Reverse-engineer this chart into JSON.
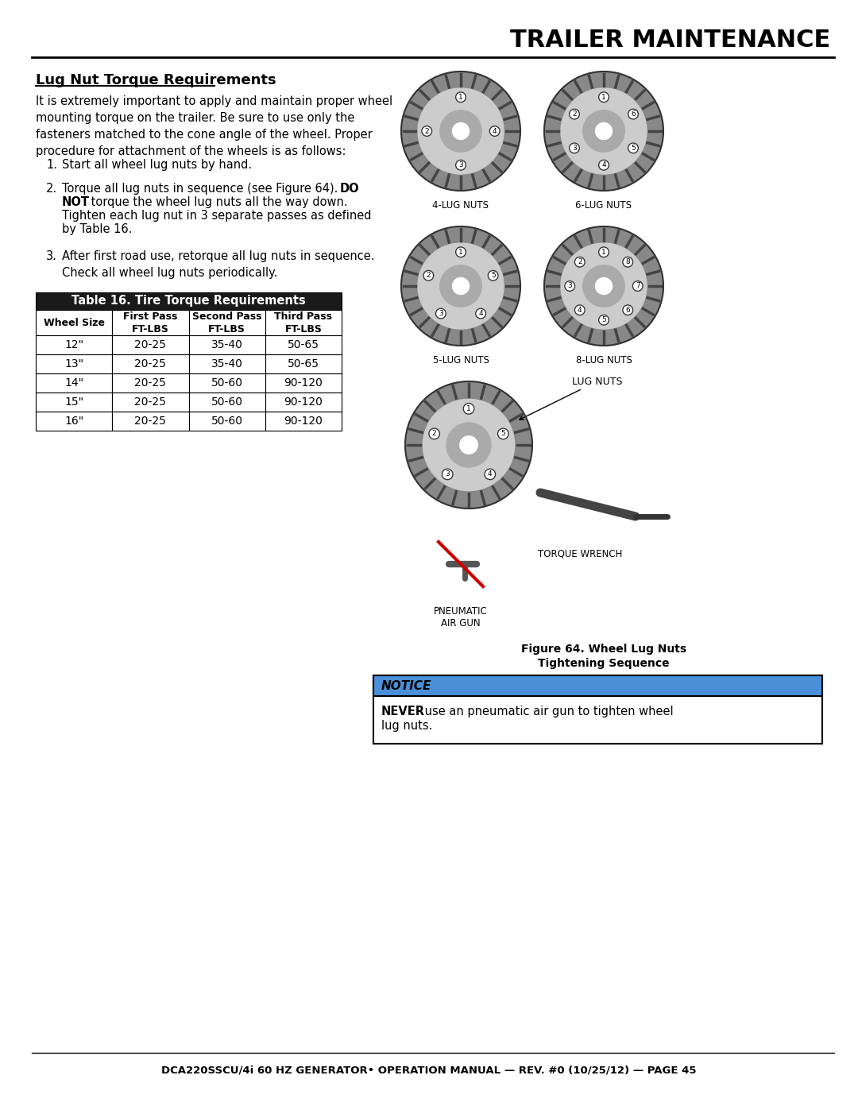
{
  "page_title": "TRAILER MAINTENANCE",
  "section_title": "Lug Nut Torque Requirements",
  "body_text": "It is extremely important to apply and maintain proper wheel\nmounting torque on the trailer. Be sure to use only the\nfasteners matched to the cone angle of the wheel. Proper\nprocedure for attachment of the wheels is as follows:",
  "list_items": [
    "Start all wheel lug nuts by hand.",
    "Torque all lug nuts in sequence (see Figure 64). DO\nNOT torque the wheel lug nuts all the way down.\nTighten each lug nut in 3 separate passes as defined\nby Table 16.",
    "After first road use, retorque all lug nuts in sequence.\nCheck all wheel lug nuts periodically."
  ],
  "list_bold_parts": [
    "",
    "DO\nNOT",
    ""
  ],
  "table_title": "Table 16. Tire Torque Requirements",
  "table_headers": [
    "Wheel Size",
    "First Pass\nFT-LBS",
    "Second Pass\nFT-LBS",
    "Third Pass\nFT-LBS"
  ],
  "table_data": [
    [
      "12\"",
      "20-25",
      "35-40",
      "50-65"
    ],
    [
      "13\"",
      "20-25",
      "35-40",
      "50-65"
    ],
    [
      "14\"",
      "20-25",
      "50-60",
      "90-120"
    ],
    [
      "15\"",
      "20-25",
      "50-60",
      "90-120"
    ],
    [
      "16\"",
      "20-25",
      "50-60",
      "90-120"
    ]
  ],
  "figure_caption": "Figure 64. Wheel Lug Nuts\nTightening Sequence",
  "notice_title": "NOTICE",
  "notice_text": "NEVER use an pneumatic air gun to tighten wheel\nlug nuts.",
  "notice_bold": "NEVER",
  "footer_text": "DCA220SSCU/4i 60 HZ GENERATOR• OPERATION MANUAL — REV. #0 (10/25/12) — PAGE 45",
  "wheel_labels": [
    "4-LUG NUTS",
    "6-LUG NUTS",
    "5-LUG NUTS",
    "8-LUG NUTS"
  ],
  "pneumatic_label": "PNEUMATIC\nAIR GUN",
  "torque_wrench_label": "TORQUE WRENCH",
  "lug_nuts_label": "LUG NUTS",
  "bg_color": "#ffffff",
  "table_header_bg": "#1a1a1a",
  "table_header_color": "#ffffff",
  "table_border_color": "#000000",
  "notice_header_bg": "#4a90d9",
  "notice_border_color": "#000000",
  "title_line_color": "#000000"
}
